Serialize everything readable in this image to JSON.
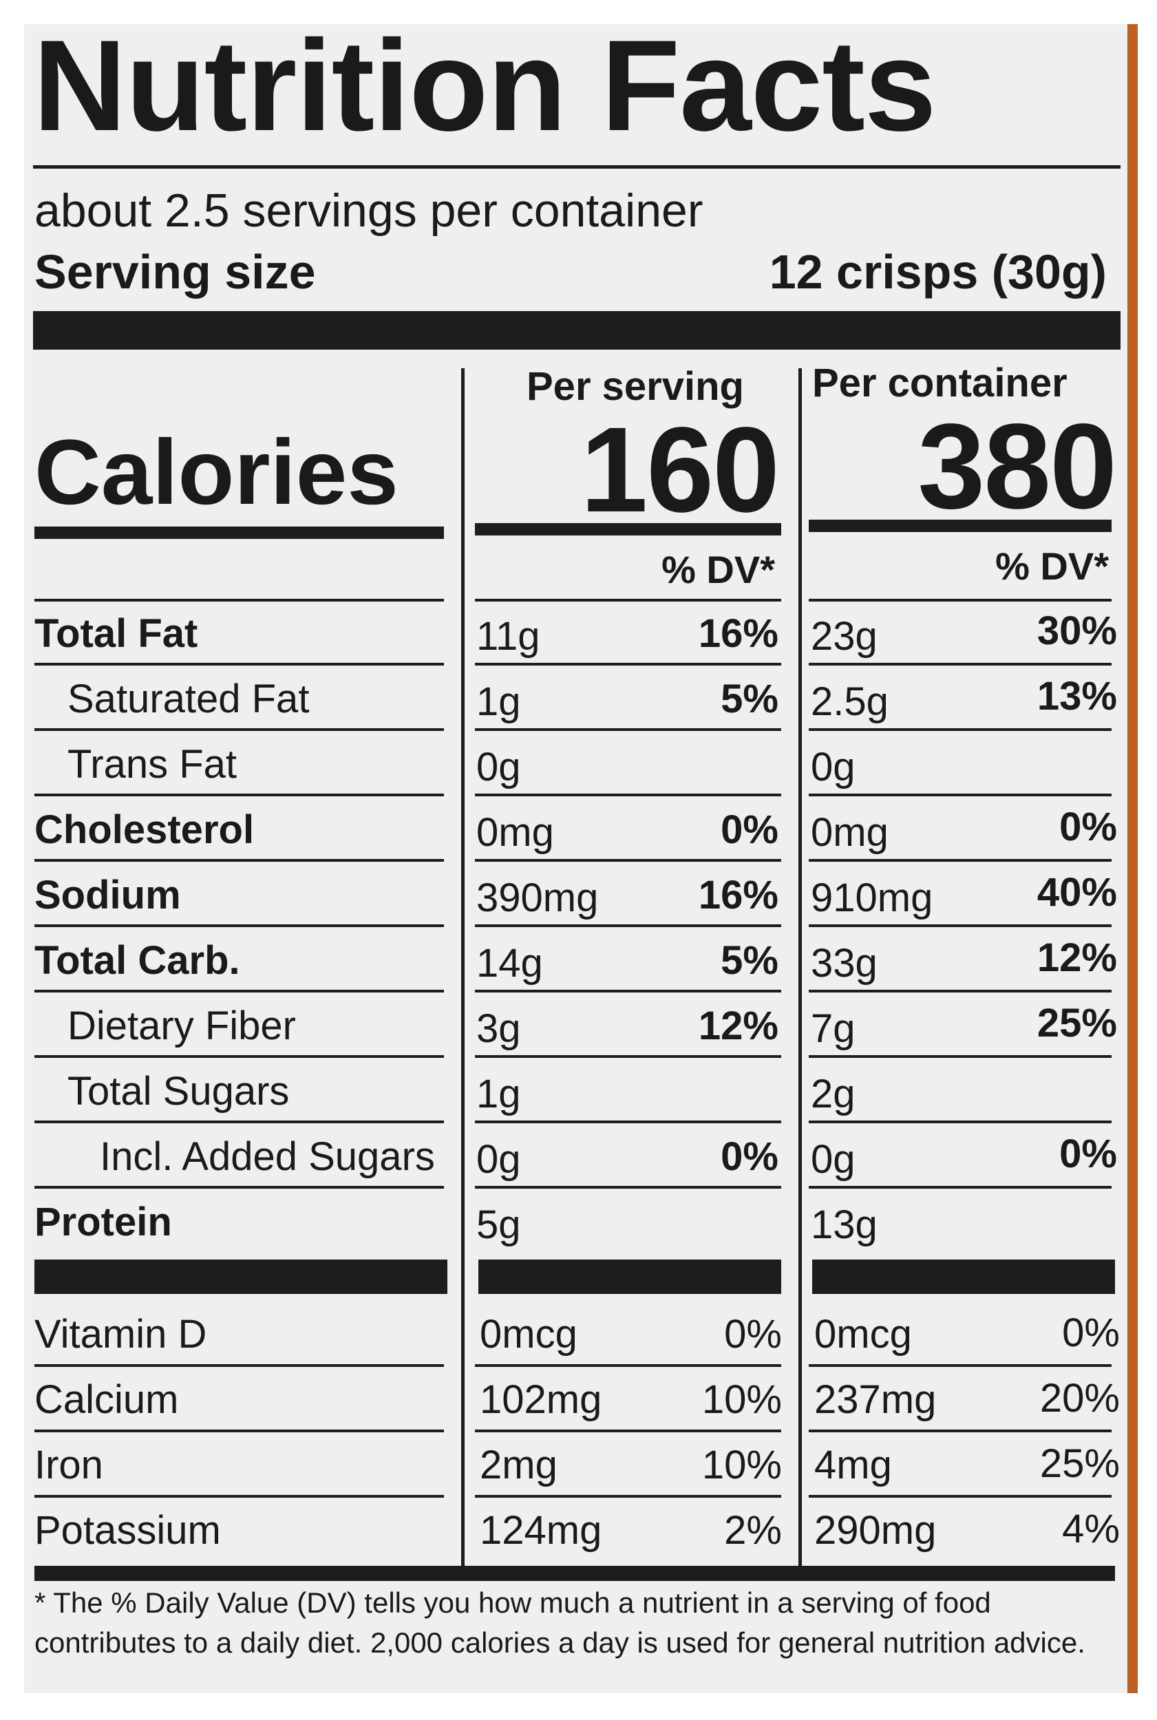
{
  "title": "Nutrition Facts",
  "servings_per_container": "about 2.5 servings per container",
  "serving_size_label": "Serving size",
  "serving_size_value": "12 crisps (30g)",
  "columns": {
    "per_serving": "Per serving",
    "per_container": "Per container"
  },
  "calories": {
    "label": "Calories",
    "per_serving": "160",
    "per_container": "380"
  },
  "dv_header": "% DV*",
  "nutrients": [
    {
      "name": "Total Fat",
      "bold": true,
      "indent": 0,
      "serv_amt": "11g",
      "serv_dv": "16%",
      "cont_amt": "23g",
      "cont_dv": "30%"
    },
    {
      "name": "Saturated Fat",
      "bold": false,
      "indent": 1,
      "serv_amt": "1g",
      "serv_dv": "5%",
      "cont_amt": "2.5g",
      "cont_dv": "13%"
    },
    {
      "name": "Trans Fat",
      "bold": false,
      "indent": 1,
      "serv_amt": "0g",
      "serv_dv": "",
      "cont_amt": "0g",
      "cont_dv": ""
    },
    {
      "name": "Cholesterol",
      "bold": true,
      "indent": 0,
      "serv_amt": "0mg",
      "serv_dv": "0%",
      "cont_amt": "0mg",
      "cont_dv": "0%"
    },
    {
      "name": "Sodium",
      "bold": true,
      "indent": 0,
      "serv_amt": "390mg",
      "serv_dv": "16%",
      "cont_amt": "910mg",
      "cont_dv": "40%"
    },
    {
      "name": "Total Carb.",
      "bold": true,
      "indent": 0,
      "serv_amt": "14g",
      "serv_dv": "5%",
      "cont_amt": "33g",
      "cont_dv": "12%"
    },
    {
      "name": "Dietary Fiber",
      "bold": false,
      "indent": 1,
      "serv_amt": "3g",
      "serv_dv": "12%",
      "cont_amt": "7g",
      "cont_dv": "25%"
    },
    {
      "name": "Total Sugars",
      "bold": false,
      "indent": 1,
      "serv_amt": "1g",
      "serv_dv": "",
      "cont_amt": "2g",
      "cont_dv": ""
    },
    {
      "name": "Incl. Added Sugars",
      "bold": false,
      "indent": 2,
      "serv_amt": "0g",
      "serv_dv": "0%",
      "cont_amt": "0g",
      "cont_dv": "0%"
    },
    {
      "name": "Protein",
      "bold": true,
      "indent": 0,
      "serv_amt": "5g",
      "serv_dv": "",
      "cont_amt": "13g",
      "cont_dv": ""
    }
  ],
  "vitamins": [
    {
      "name": "Vitamin D",
      "serv_amt": "0mcg",
      "serv_dv": "0%",
      "cont_amt": "0mcg",
      "cont_dv": "0%"
    },
    {
      "name": "Calcium",
      "serv_amt": "102mg",
      "serv_dv": "10%",
      "cont_amt": "237mg",
      "cont_dv": "20%"
    },
    {
      "name": "Iron",
      "serv_amt": "2mg",
      "serv_dv": "10%",
      "cont_amt": "4mg",
      "cont_dv": "25%"
    },
    {
      "name": "Potassium",
      "serv_amt": "124mg",
      "serv_dv": "2%",
      "cont_amt": "290mg",
      "cont_dv": "4%"
    }
  ],
  "footnote": "* The % Daily Value (DV) tells you how much a nutrient in a serving of food contributes to a daily diet. 2,000 calories a day is used for general nutrition advice."
}
